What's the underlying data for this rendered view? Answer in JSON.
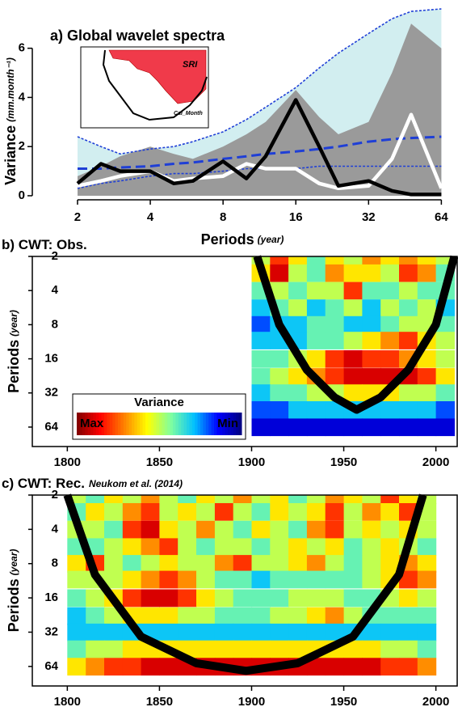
{
  "chart_data": [
    {
      "type": "line",
      "title": "a) Global wavelet spectra",
      "ylabel": "Variance",
      "ylabel_units": "(mm.month⁻¹)",
      "xlabel": "Periods",
      "xlabel_units": "(year)",
      "log_x": true,
      "xlim": [
        1.3,
        75
      ],
      "ylim": [
        -0.1,
        7.7
      ],
      "xticks": [
        2,
        4,
        8,
        16,
        32,
        64
      ],
      "yticks": [
        0,
        2,
        4,
        6
      ],
      "inset_labels": [
        "SRI",
        "Cal_Month"
      ],
      "x": [
        2,
        2.5,
        3,
        4,
        5,
        6,
        8,
        10,
        12,
        16,
        20,
        24,
        32,
        40,
        48,
        64
      ],
      "series": [
        {
          "style": "area",
          "color": "#d2eef0",
          "values": [
            2.4,
            2.0,
            1.7,
            1.9,
            2.0,
            2.2,
            2.6,
            3.1,
            3.6,
            4.4,
            5.2,
            5.8,
            6.6,
            7.2,
            7.5,
            7.6
          ]
        },
        {
          "style": "area",
          "color": "#9a9a9a",
          "values": [
            0.8,
            1.2,
            1.6,
            2.0,
            1.7,
            1.5,
            2.0,
            2.5,
            3.0,
            4.3,
            3.2,
            2.5,
            3.0,
            5.0,
            7.0,
            6.0
          ]
        },
        {
          "style": "dotted",
          "color": "#1f3fd6",
          "values": [
            2.4,
            2.0,
            1.7,
            1.9,
            2.0,
            2.2,
            2.6,
            3.1,
            3.6,
            4.4,
            5.2,
            5.8,
            6.6,
            7.2,
            7.5,
            7.6
          ]
        },
        {
          "style": "dotted",
          "color": "#1f3fd6",
          "values": [
            0.3,
            0.5,
            0.6,
            0.8,
            0.9,
            0.9,
            1.0,
            1.1,
            1.1,
            1.1,
            1.2,
            1.2,
            1.2,
            1.2,
            1.2,
            1.2
          ]
        },
        {
          "style": "dashed",
          "color": "#1f3fd6",
          "values": [
            1.1,
            1.1,
            1.15,
            1.2,
            1.3,
            1.35,
            1.5,
            1.6,
            1.7,
            1.8,
            1.9,
            2.0,
            2.2,
            2.3,
            2.35,
            2.4
          ]
        },
        {
          "style": "solid",
          "color": "#ffffff",
          "values": [
            0.4,
            0.6,
            0.8,
            1.0,
            0.6,
            0.7,
            0.8,
            1.3,
            1.1,
            1.1,
            0.5,
            0.3,
            0.4,
            1.5,
            3.3,
            0.3
          ]
        },
        {
          "style": "solid",
          "color": "#000000",
          "values": [
            0.5,
            1.3,
            1.0,
            1.0,
            0.5,
            0.6,
            1.4,
            0.7,
            1.6,
            3.9,
            2.0,
            0.4,
            0.6,
            0.2,
            0.05,
            0.05
          ]
        }
      ]
    },
    {
      "type": "heatmap",
      "title": "b) CWT: Obs.",
      "ylabel": "Periods",
      "ylabel_units": "(year)",
      "xlim": [
        1781,
        2012
      ],
      "ylim": [
        2,
        95
      ],
      "log_y": true,
      "xticks": [
        1800,
        1850,
        1900,
        1950,
        2000
      ],
      "yticks": [
        2,
        4,
        8,
        16,
        32,
        64
      ],
      "colorbar": {
        "label": "Variance",
        "max_label": "Max",
        "min_label": "Min"
      },
      "colors": [
        "#00007f",
        "#0000ff",
        "#00c0ff",
        "#80ffa0",
        "#ffff00",
        "#ff8000",
        "#ff0000",
        "#7f0000"
      ],
      "zlim": [
        0,
        1
      ],
      "x": [
        1905,
        1915,
        1925,
        1935,
        1945,
        1955,
        1965,
        1975,
        1985,
        1995,
        2005
      ],
      "y": [
        2,
        2.8,
        4,
        5.7,
        8,
        11,
        16,
        23,
        32,
        45,
        64
      ],
      "z": [
        [
          0.5,
          0.8,
          0.6,
          0.4,
          0.6,
          0.5,
          0.7,
          0.6,
          0.7,
          0.6,
          0.5
        ],
        [
          0.6,
          0.9,
          0.5,
          0.4,
          0.7,
          0.6,
          0.6,
          0.5,
          0.8,
          0.7,
          0.4
        ],
        [
          0.4,
          0.5,
          0.4,
          0.5,
          0.5,
          0.8,
          0.4,
          0.4,
          0.5,
          0.4,
          0.4
        ],
        [
          0.3,
          0.4,
          0.5,
          0.3,
          0.4,
          0.5,
          0.3,
          0.5,
          0.4,
          0.5,
          0.3
        ],
        [
          0.2,
          0.3,
          0.3,
          0.4,
          0.4,
          0.3,
          0.3,
          0.4,
          0.5,
          0.5,
          0.4
        ],
        [
          0.3,
          0.3,
          0.3,
          0.4,
          0.4,
          0.5,
          0.6,
          0.7,
          0.8,
          0.6,
          0.5
        ],
        [
          0.4,
          0.4,
          0.5,
          0.6,
          0.8,
          0.9,
          0.8,
          0.8,
          0.7,
          0.6,
          0.5
        ],
        [
          0.4,
          0.5,
          0.6,
          0.7,
          0.8,
          0.9,
          0.9,
          0.9,
          0.9,
          0.8,
          0.6
        ],
        [
          0.3,
          0.4,
          0.4,
          0.5,
          0.5,
          0.6,
          0.6,
          0.6,
          0.5,
          0.5,
          0.4
        ],
        [
          0.2,
          0.2,
          0.3,
          0.3,
          0.3,
          0.3,
          0.3,
          0.3,
          0.3,
          0.3,
          0.2
        ],
        [
          0.1,
          0.1,
          0.1,
          0.1,
          0.1,
          0.1,
          0.1,
          0.1,
          0.1,
          0.1,
          0.1
        ]
      ],
      "coi": {
        "x": [
          1903,
          1915,
          1930,
          1945,
          1957,
          1970,
          1985,
          2000,
          2010
        ],
        "y": [
          2,
          8,
          20,
          35,
          45,
          35,
          20,
          8,
          2
        ]
      }
    },
    {
      "type": "heatmap",
      "title": "c) CWT: Rec.",
      "subtitle": "Neukom et al. (2014)",
      "ylabel": "Periods",
      "ylabel_units": "(year)",
      "xlim": [
        1781,
        2012
      ],
      "ylim": [
        2,
        95
      ],
      "log_y": true,
      "xticks": [
        1800,
        1850,
        1900,
        1950,
        2000
      ],
      "yticks": [
        2,
        4,
        8,
        16,
        32,
        64
      ],
      "colors": [
        "#00007f",
        "#0000ff",
        "#00c0ff",
        "#80ffa0",
        "#ffff00",
        "#ff8000",
        "#ff0000",
        "#7f0000"
      ],
      "zlim": [
        0,
        1
      ],
      "x": [
        1805,
        1815,
        1825,
        1835,
        1845,
        1855,
        1865,
        1875,
        1885,
        1895,
        1905,
        1915,
        1925,
        1935,
        1945,
        1955,
        1965,
        1975,
        1985,
        1995
      ],
      "y": [
        2,
        2.8,
        4,
        5.7,
        8,
        11,
        16,
        23,
        32,
        45,
        64
      ],
      "z": [
        [
          0.5,
          0.4,
          0.6,
          0.5,
          0.7,
          0.5,
          0.4,
          0.6,
          0.5,
          0.7,
          0.5,
          0.6,
          0.4,
          0.5,
          0.7,
          0.6,
          0.5,
          0.8,
          0.6,
          0.5
        ],
        [
          0.4,
          0.6,
          0.5,
          0.7,
          0.8,
          0.5,
          0.6,
          0.5,
          0.8,
          0.5,
          0.4,
          0.6,
          0.5,
          0.6,
          0.8,
          0.5,
          0.7,
          0.6,
          0.8,
          0.5
        ],
        [
          0.5,
          0.5,
          0.4,
          0.8,
          0.9,
          0.6,
          0.5,
          0.7,
          0.5,
          0.4,
          0.6,
          0.5,
          0.4,
          0.7,
          0.8,
          0.5,
          0.6,
          0.5,
          0.6,
          0.5
        ],
        [
          0.4,
          0.4,
          0.5,
          0.6,
          0.7,
          0.8,
          0.5,
          0.4,
          0.5,
          0.5,
          0.4,
          0.5,
          0.6,
          0.5,
          0.6,
          0.4,
          0.5,
          0.6,
          0.5,
          0.4
        ],
        [
          0.6,
          0.8,
          0.5,
          0.4,
          0.5,
          0.6,
          0.5,
          0.5,
          0.7,
          0.8,
          0.5,
          0.5,
          0.6,
          0.7,
          0.5,
          0.4,
          0.5,
          0.6,
          0.7,
          0.6
        ],
        [
          0.5,
          0.5,
          0.5,
          0.6,
          0.7,
          0.8,
          0.7,
          0.5,
          0.4,
          0.4,
          0.3,
          0.4,
          0.4,
          0.4,
          0.4,
          0.4,
          0.5,
          0.6,
          0.8,
          0.7
        ],
        [
          0.4,
          0.5,
          0.6,
          0.8,
          0.9,
          0.9,
          0.8,
          0.6,
          0.5,
          0.4,
          0.4,
          0.4,
          0.5,
          0.5,
          0.5,
          0.4,
          0.4,
          0.5,
          0.6,
          0.5
        ],
        [
          0.3,
          0.4,
          0.5,
          0.6,
          0.6,
          0.6,
          0.5,
          0.5,
          0.4,
          0.4,
          0.4,
          0.5,
          0.5,
          0.6,
          0.7,
          0.5,
          0.4,
          0.4,
          0.4,
          0.4
        ],
        [
          0.3,
          0.3,
          0.3,
          0.3,
          0.3,
          0.3,
          0.3,
          0.3,
          0.3,
          0.3,
          0.3,
          0.3,
          0.3,
          0.3,
          0.3,
          0.3,
          0.3,
          0.3,
          0.3,
          0.3
        ],
        [
          0.4,
          0.5,
          0.5,
          0.6,
          0.6,
          0.6,
          0.6,
          0.6,
          0.6,
          0.6,
          0.6,
          0.6,
          0.6,
          0.6,
          0.6,
          0.6,
          0.6,
          0.5,
          0.5,
          0.4
        ],
        [
          0.6,
          0.7,
          0.8,
          0.8,
          0.9,
          0.9,
          0.9,
          0.9,
          0.9,
          0.9,
          0.9,
          0.9,
          0.9,
          0.9,
          0.9,
          0.9,
          0.9,
          0.8,
          0.8,
          0.7
        ]
      ],
      "coi": {
        "x": [
          1800,
          1815,
          1840,
          1870,
          1897,
          1925,
          1955,
          1980,
          1993
        ],
        "y": [
          2,
          10,
          35,
          60,
          70,
          60,
          35,
          10,
          2
        ]
      }
    }
  ]
}
